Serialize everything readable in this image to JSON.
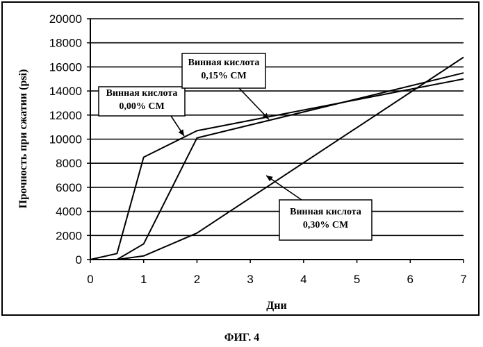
{
  "chart_data": {
    "type": "line",
    "title": "",
    "xlabel": "Дни",
    "ylabel": "Прочность при сжатии (psi)",
    "xlim": [
      0,
      7
    ],
    "ylim": [
      0,
      20000
    ],
    "x_ticks": [
      "0",
      "1",
      "2",
      "3",
      "4",
      "5",
      "6",
      "7"
    ],
    "y_ticks": [
      "0",
      "2000",
      "4000",
      "6000",
      "8000",
      "10000",
      "12000",
      "14000",
      "16000",
      "18000",
      "20000"
    ],
    "grid": "horizontal",
    "series": [
      {
        "label_lines": [
          "Винная кислота",
          "0,00% СМ"
        ],
        "points": [
          [
            0,
            0
          ],
          [
            0.5,
            500
          ],
          [
            1,
            8500
          ],
          [
            2,
            10700
          ],
          [
            7,
            15000
          ]
        ]
      },
      {
        "label_lines": [
          "Винная кислота",
          "0,15% СМ"
        ],
        "points": [
          [
            0.5,
            0
          ],
          [
            1,
            1300
          ],
          [
            2,
            10100
          ],
          [
            7,
            15500
          ]
        ]
      },
      {
        "label_lines": [
          "Винная кислота",
          "0,30% СМ"
        ],
        "points": [
          [
            0.5,
            0
          ],
          [
            1,
            300
          ],
          [
            2,
            2200
          ],
          [
            7,
            16800
          ]
        ]
      }
    ]
  },
  "caption": "ФИГ. 4"
}
